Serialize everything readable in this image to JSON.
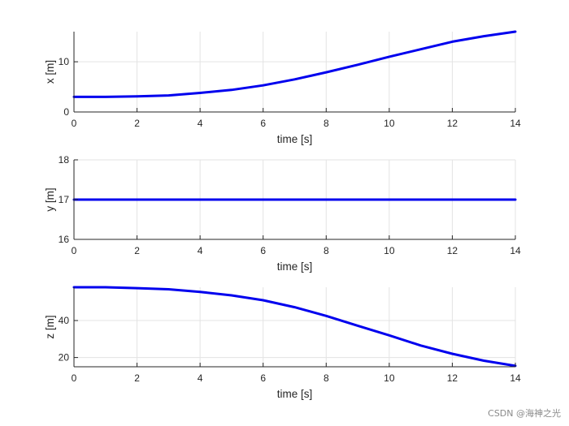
{
  "chart_data": [
    {
      "type": "line",
      "xlabel": "time [s]",
      "ylabel": "x [m]",
      "xlim": [
        0,
        14
      ],
      "ylim": [
        0,
        16
      ],
      "xticks": [
        0,
        2,
        4,
        6,
        8,
        10,
        12,
        14
      ],
      "yticks": [
        0,
        10
      ],
      "grid": true,
      "series": [
        {
          "color": "#0000ee",
          "x": [
            0,
            1,
            2,
            3,
            4,
            5,
            6,
            7,
            8,
            9,
            10,
            11,
            12,
            13,
            14
          ],
          "y": [
            3.0,
            3.0,
            3.1,
            3.3,
            3.8,
            4.4,
            5.3,
            6.5,
            7.9,
            9.4,
            11.0,
            12.5,
            14.0,
            15.1,
            16.0
          ]
        }
      ]
    },
    {
      "type": "line",
      "xlabel": "time [s]",
      "ylabel": "y [m]",
      "xlim": [
        0,
        14
      ],
      "ylim": [
        16,
        18
      ],
      "xticks": [
        0,
        2,
        4,
        6,
        8,
        10,
        12,
        14
      ],
      "yticks": [
        16,
        17,
        18
      ],
      "grid": true,
      "series": [
        {
          "color": "#0000ee",
          "x": [
            0,
            14
          ],
          "y": [
            17,
            17
          ]
        }
      ]
    },
    {
      "type": "line",
      "xlabel": "time [s]",
      "ylabel": "z [m]",
      "xlim": [
        0,
        14
      ],
      "ylim": [
        15,
        58
      ],
      "xticks": [
        0,
        2,
        4,
        6,
        8,
        10,
        12,
        14
      ],
      "yticks": [
        20,
        40
      ],
      "grid": true,
      "series": [
        {
          "color": "#0000ee",
          "x": [
            0,
            1,
            2,
            3,
            4,
            5,
            6,
            7,
            8,
            9,
            10,
            11,
            12,
            13,
            14
          ],
          "y": [
            58.0,
            58.0,
            57.5,
            56.9,
            55.5,
            53.6,
            51.0,
            47.2,
            42.5,
            37.2,
            32.0,
            26.5,
            22.0,
            18.3,
            15.5
          ]
        }
      ]
    }
  ],
  "watermark": "CSDN @海神之光"
}
